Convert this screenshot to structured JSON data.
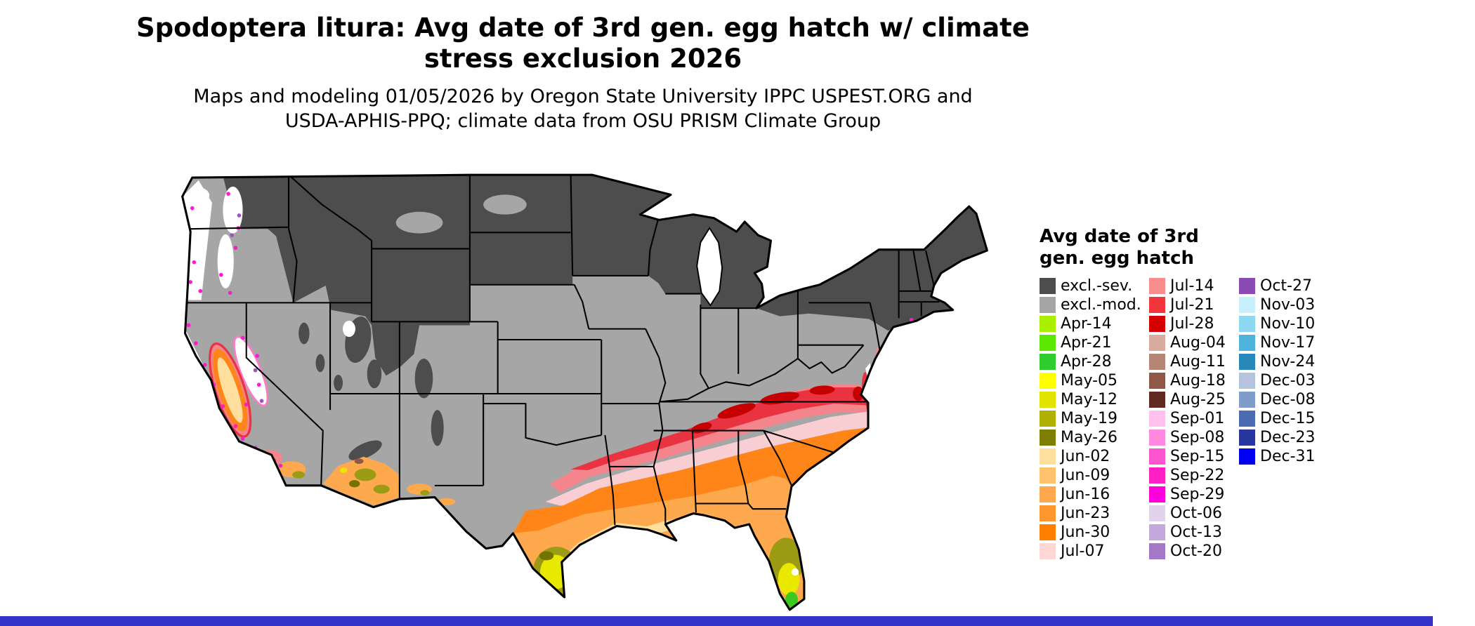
{
  "title": {
    "lines": [
      "Spodoptera litura: Avg date of 3rd gen. egg hatch w/ climate",
      "stress exclusion 2026"
    ]
  },
  "subtitle": {
    "lines": [
      "Maps and modeling 01/05/2026 by Oregon State University IPPC USPEST.ORG and",
      "USDA-APHIS-PPQ; climate data from OSU PRISM Climate Group"
    ]
  },
  "legend": {
    "title_lines": [
      "Avg date of 3rd",
      "gen. egg hatch"
    ],
    "columns": [
      [
        {
          "label": "excl.-sev.",
          "color": "#4d4d4d"
        },
        {
          "label": "excl.-mod.",
          "color": "#a6a6a6"
        },
        {
          "label": "Apr-14",
          "color": "#a8f000"
        },
        {
          "label": "Apr-21",
          "color": "#5ce800"
        },
        {
          "label": "Apr-28",
          "color": "#2ecc2e"
        },
        {
          "label": "May-05",
          "color": "#ffff00"
        },
        {
          "label": "May-12",
          "color": "#e3e300"
        },
        {
          "label": "May-19",
          "color": "#b0b000"
        },
        {
          "label": "May-26",
          "color": "#7e7e00"
        },
        {
          "label": "Jun-02",
          "color": "#ffdf9e"
        },
        {
          "label": "Jun-09",
          "color": "#ffc36e"
        },
        {
          "label": "Jun-16",
          "color": "#ffa94f"
        },
        {
          "label": "Jun-23",
          "color": "#ff962e"
        },
        {
          "label": "Jun-30",
          "color": "#ff7f00"
        },
        {
          "label": "Jul-07",
          "color": "#ffd7d7"
        }
      ],
      [
        {
          "label": "Jul-14",
          "color": "#f98d8d"
        },
        {
          "label": "Jul-21",
          "color": "#f2343c"
        },
        {
          "label": "Jul-28",
          "color": "#d40000"
        },
        {
          "label": "Aug-04",
          "color": "#d9aba1"
        },
        {
          "label": "Aug-11",
          "color": "#b58576"
        },
        {
          "label": "Aug-18",
          "color": "#8f5948"
        },
        {
          "label": "Aug-25",
          "color": "#5f2a20"
        },
        {
          "label": "Sep-01",
          "color": "#ffc2ec"
        },
        {
          "label": "Sep-08",
          "color": "#ff8ade"
        },
        {
          "label": "Sep-15",
          "color": "#ff54d0"
        },
        {
          "label": "Sep-22",
          "color": "#ff1fc3"
        },
        {
          "label": "Sep-29",
          "color": "#ff00dc"
        },
        {
          "label": "Oct-06",
          "color": "#e0d4ec"
        },
        {
          "label": "Oct-13",
          "color": "#c3a8dc"
        },
        {
          "label": "Oct-20",
          "color": "#a379c6"
        }
      ],
      [
        {
          "label": "Oct-27",
          "color": "#8a4bb4"
        },
        {
          "label": "Nov-03",
          "color": "#c8f0fc"
        },
        {
          "label": "Nov-10",
          "color": "#8fd8f2"
        },
        {
          "label": "Nov-17",
          "color": "#4fb4dc"
        },
        {
          "label": "Nov-24",
          "color": "#2888b8"
        },
        {
          "label": "Dec-03",
          "color": "#b4c3de"
        },
        {
          "label": "Dec-08",
          "color": "#7f9cca"
        },
        {
          "label": "Dec-15",
          "color": "#4b6cb4"
        },
        {
          "label": "Dec-23",
          "color": "#28369e"
        },
        {
          "label": "Dec-31",
          "color": "#0000f0"
        }
      ]
    ]
  },
  "map": {
    "colors": {
      "exclsev": "#4d4d4d",
      "exclmod": "#a6a6a6",
      "white": "#ffffff",
      "jun02": "#ffdf9e",
      "jun16": "#ffa94f",
      "jun30": "#ff8519",
      "jul07": "#f9ced3",
      "jul14": "#f4858d",
      "jul21": "#ea3340",
      "jul28": "#c60000",
      "olive": "#9c9c14",
      "darkolive": "#737300",
      "yellow": "#e9e900",
      "green": "#3cc81e",
      "magenta": "#ff1ad1",
      "pinkedge": "#ff7ac8",
      "purple": "#a050c8",
      "brown": "#8f5948",
      "border": "#000000"
    },
    "bottom_bar_color": "#3333cc"
  }
}
